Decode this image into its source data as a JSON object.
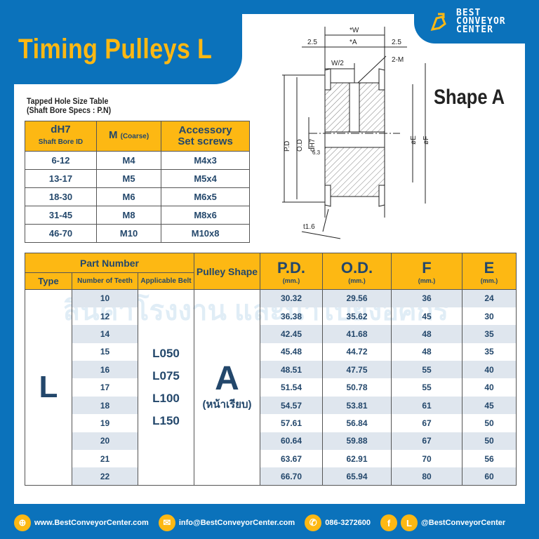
{
  "title": "Timing Pulleys L",
  "logo": {
    "line1": "BEST",
    "line2": "CONVEYOR",
    "line3": "CENTER"
  },
  "watermark": "สินค้าโรงงาน และนำไปยังอิศกร",
  "tapped_table": {
    "caption_line1": "Tapped Hole Size Table",
    "caption_line2": "(Shaft Bore Specs : P.N)",
    "headers": {
      "dh7": "dH7",
      "dh7_sub": "Shaft Bore ID",
      "m": "M",
      "m_sub": "(Coarse)",
      "acc1": "Accessory",
      "acc2": "Set screws"
    },
    "rows": [
      [
        "6-12",
        "M4",
        "M4x3"
      ],
      [
        "13-17",
        "M5",
        "M5x4"
      ],
      [
        "18-30",
        "M6",
        "M6x5"
      ],
      [
        "31-45",
        "M8",
        "M8x6"
      ],
      [
        "46-70",
        "M10",
        "M10x8"
      ]
    ]
  },
  "diagram": {
    "w": "*W",
    "a": "*A",
    "left": "2.5",
    "right": "2.5",
    "w2": "W/2",
    "m": "2-M",
    "pd": "P.D",
    "od": "O.D",
    "dh7": "dH7",
    "rough": "6.3",
    "e": "øE",
    "f": "øF",
    "t": "t1.6"
  },
  "shape_label": "Shape A",
  "main_table": {
    "headers": {
      "part_number": "Part Number",
      "type": "Type",
      "teeth": "Number of Teeth",
      "belt": "Applicable Belt",
      "shape": "Pulley Shape",
      "pd": "P.D.",
      "od": "O.D.",
      "f": "F",
      "e": "E",
      "unit": "(mm.)"
    },
    "type": "L",
    "belts": [
      "L050",
      "L075",
      "L100",
      "L150"
    ],
    "shape": "A",
    "shape_sub": "(หน้าเรียบ)",
    "rows": [
      [
        "10",
        "30.32",
        "29.56",
        "36",
        "24"
      ],
      [
        "12",
        "36.38",
        "35.62",
        "45",
        "30"
      ],
      [
        "14",
        "42.45",
        "41.68",
        "48",
        "35"
      ],
      [
        "15",
        "45.48",
        "44.72",
        "48",
        "35"
      ],
      [
        "16",
        "48.51",
        "47.75",
        "55",
        "40"
      ],
      [
        "17",
        "51.54",
        "50.78",
        "55",
        "40"
      ],
      [
        "18",
        "54.57",
        "53.81",
        "61",
        "45"
      ],
      [
        "19",
        "57.61",
        "56.84",
        "67",
        "50"
      ],
      [
        "20",
        "60.64",
        "59.88",
        "67",
        "50"
      ],
      [
        "21",
        "63.67",
        "62.91",
        "70",
        "56"
      ],
      [
        "22",
        "66.70",
        "65.94",
        "80",
        "60"
      ]
    ]
  },
  "footer": {
    "web": "www.BestConveyorCenter.com",
    "email": "info@BestConveyorCenter.com",
    "phone": "086-3272600",
    "social": "@BestConveyorCenter",
    "line_letter": "L",
    "fb_letter": "f"
  },
  "colors": {
    "blue": "#0b72bb",
    "yellow": "#fdb813",
    "text": "#23476b"
  }
}
